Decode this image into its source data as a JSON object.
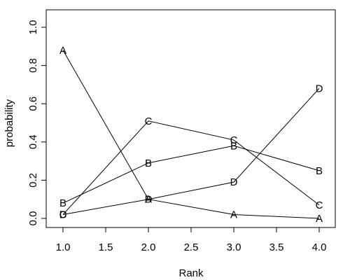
{
  "chart_data": {
    "type": "line",
    "xlabel": "Rank",
    "ylabel": "probability",
    "xlim": [
      1.0,
      4.0
    ],
    "ylim": [
      0.0,
      1.0
    ],
    "x": [
      1,
      2,
      3,
      4
    ],
    "x_ticks": [
      "1.0",
      "1.5",
      "2.0",
      "2.5",
      "3.0",
      "3.5",
      "4.0"
    ],
    "y_ticks": [
      "0.0",
      "0.2",
      "0.4",
      "0.6",
      "0.8",
      "1.0"
    ],
    "grid": false,
    "legend": "none",
    "series": [
      {
        "name": "A",
        "values": [
          0.88,
          0.1,
          0.02,
          0.0
        ]
      },
      {
        "name": "B",
        "values": [
          0.08,
          0.29,
          0.38,
          0.25
        ]
      },
      {
        "name": "C",
        "values": [
          0.02,
          0.51,
          0.41,
          0.07
        ]
      },
      {
        "name": "D",
        "values": [
          0.02,
          0.1,
          0.19,
          0.68
        ]
      }
    ],
    "line_color": "#000000"
  }
}
